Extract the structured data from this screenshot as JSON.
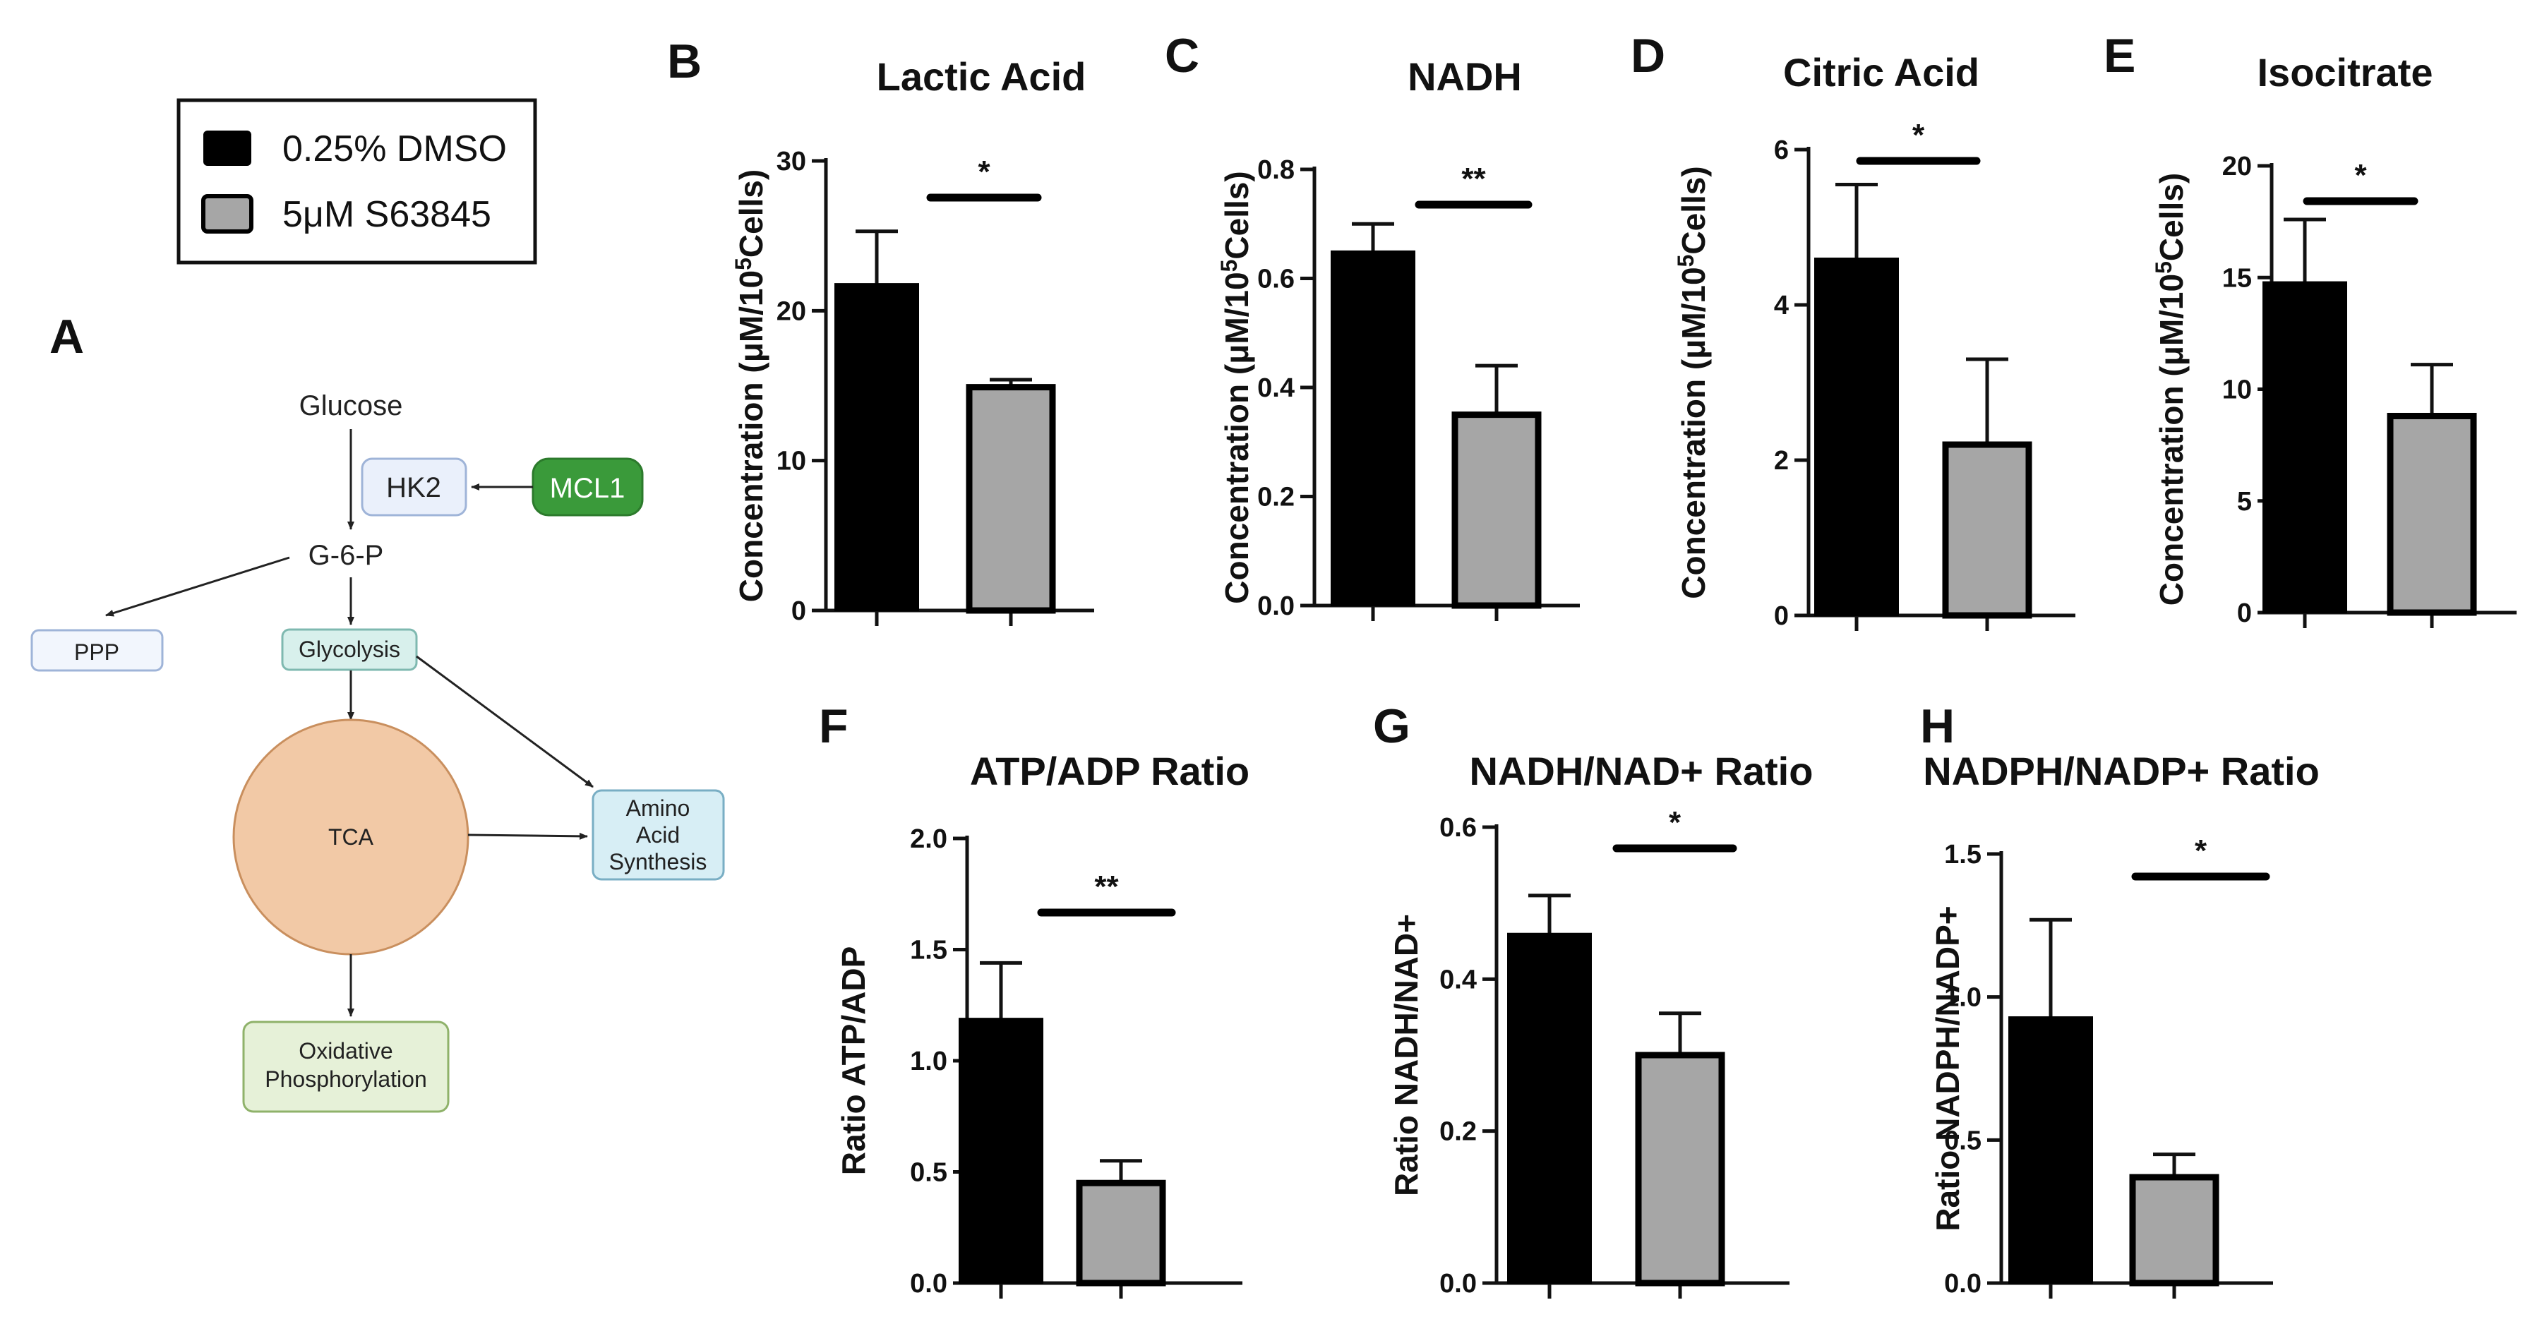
{
  "legend": {
    "items": [
      {
        "label": "0.25% DMSO",
        "color": "#000000"
      },
      {
        "label": "5μM S63845",
        "color": "#a6a6a6"
      }
    ]
  },
  "diagram": {
    "letter": "A",
    "nodes": {
      "glucose": "Glucose",
      "hk2": "HK2",
      "mcl1": "MCL1",
      "g6p": "G-6-P",
      "ppp": "PPP",
      "glycolysis": "Glycolysis",
      "tca": "TCA",
      "amino": [
        "Amino",
        "Acid",
        "Synthesis"
      ],
      "oxphos": [
        "Oxidative",
        "Phosphorylation"
      ]
    },
    "colors": {
      "mcl1": "#3a9a3a",
      "tca": "#f2c9a6",
      "oxphos": "#e6f1d8",
      "amino": "#d7eef5",
      "glycolysis": "#d8f0ec",
      "hk2": "#eaf0fb"
    }
  },
  "chart_data": [
    {
      "id": "B",
      "letter": "B",
      "type": "bar",
      "title": "Lactic Acid",
      "ylabel": "Concentration (μM/10^5Cells)",
      "ylim": [
        0,
        30
      ],
      "yticks": [
        0,
        10,
        20,
        30
      ],
      "tick_labels": [
        "0",
        "10",
        "20",
        "30"
      ],
      "values": [
        21.8,
        14.9
      ],
      "errors": [
        3.5,
        0.5
      ],
      "sig": "*",
      "colors": [
        "#000000",
        "#a6a6a6"
      ]
    },
    {
      "id": "C",
      "letter": "C",
      "type": "bar",
      "title": "NADH",
      "ylabel": "Concentration (μM/10^5Cells)",
      "ylim": [
        0,
        0.8
      ],
      "yticks": [
        0,
        0.2,
        0.4,
        0.6,
        0.8
      ],
      "tick_labels": [
        "0.0",
        "0.2",
        "0.4",
        "0.6",
        "0.8"
      ],
      "values": [
        0.65,
        0.35
      ],
      "errors": [
        0.05,
        0.09
      ],
      "sig": "**",
      "colors": [
        "#000000",
        "#a6a6a6"
      ]
    },
    {
      "id": "D",
      "letter": "D",
      "type": "bar",
      "title": "Citric Acid",
      "ylabel": "Concentration (μM/10^5Cells)",
      "ylim": [
        0,
        6
      ],
      "yticks": [
        0,
        2,
        4,
        6
      ],
      "tick_labels": [
        "0",
        "2",
        "4",
        "6"
      ],
      "values": [
        4.6,
        2.2
      ],
      "errors": [
        0.95,
        1.1
      ],
      "sig": "*",
      "colors": [
        "#000000",
        "#a6a6a6"
      ]
    },
    {
      "id": "E",
      "letter": "E",
      "type": "bar",
      "title": "Isocitrate",
      "ylabel": "Concentration (μM/10^5Cells)",
      "ylim": [
        0,
        20
      ],
      "yticks": [
        0,
        5,
        10,
        15,
        20
      ],
      "tick_labels": [
        "0",
        "5",
        "10",
        "15",
        "20"
      ],
      "values": [
        14.8,
        8.8
      ],
      "errors": [
        2.8,
        2.3
      ],
      "sig": "*",
      "colors": [
        "#000000",
        "#a6a6a6"
      ]
    },
    {
      "id": "F",
      "letter": "F",
      "type": "bar",
      "title": "ATP/ADP Ratio",
      "ylabel": "Ratio  ATP/ADP",
      "ylim": [
        0,
        2
      ],
      "yticks": [
        0,
        0.5,
        1,
        1.5,
        2
      ],
      "tick_labels": [
        "0.0",
        "0.5",
        "1.0",
        "1.5",
        "2.0"
      ],
      "values": [
        1.19,
        0.45
      ],
      "errors": [
        0.25,
        0.1
      ],
      "sig": "**",
      "colors": [
        "#000000",
        "#a6a6a6"
      ]
    },
    {
      "id": "G",
      "letter": "G",
      "type": "bar",
      "title": "NADH/NAD+ Ratio",
      "ylabel": "Ratio NADH/NAD+",
      "ylim": [
        0,
        0.6
      ],
      "yticks": [
        0,
        0.2,
        0.4,
        0.6
      ],
      "tick_labels": [
        "0.0",
        "0.2",
        "0.4",
        "0.6"
      ],
      "values": [
        0.46,
        0.3
      ],
      "errors": [
        0.05,
        0.055
      ],
      "sig": "*",
      "colors": [
        "#000000",
        "#a6a6a6"
      ]
    },
    {
      "id": "H",
      "letter": "H",
      "type": "bar",
      "title": "NADPH/NADP+ Ratio",
      "ylabel": "Ratio NADPH/NADP+",
      "ylim": [
        0,
        1.5
      ],
      "yticks": [
        0,
        0.5,
        1,
        1.5
      ],
      "tick_labels": [
        "0.0",
        "0.5",
        "1.0",
        "1.5"
      ],
      "values": [
        0.93,
        0.37
      ],
      "errors": [
        0.34,
        0.08
      ],
      "sig": "*",
      "colors": [
        "#000000",
        "#a6a6a6"
      ]
    }
  ]
}
